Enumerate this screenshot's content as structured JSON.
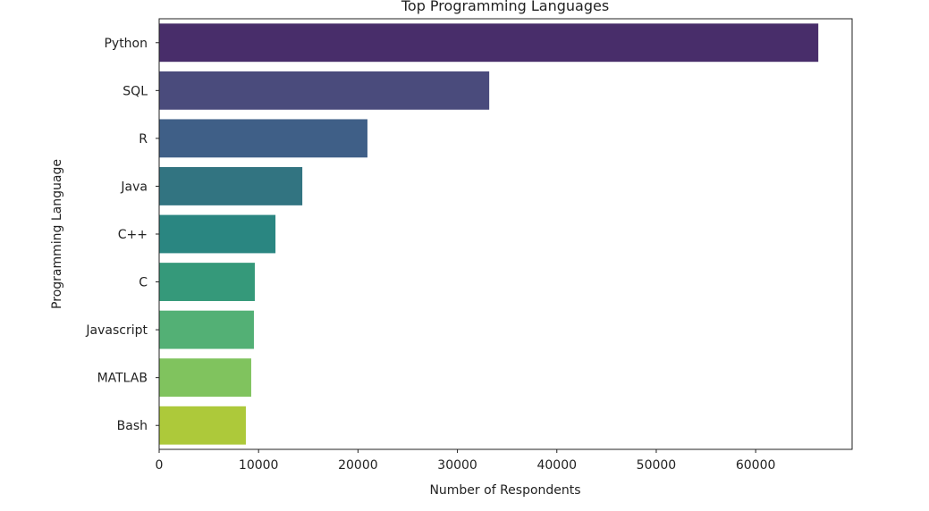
{
  "chart_data": {
    "type": "bar",
    "orientation": "horizontal",
    "title": "Top Programming Languages",
    "xlabel": "Number of Respondents",
    "ylabel": "Programming Language",
    "categories": [
      "Python",
      "SQL",
      "R",
      "Java",
      "C++",
      "C",
      "Javascript",
      "MATLAB",
      "Bash"
    ],
    "values": [
      66300,
      33200,
      20950,
      14400,
      11700,
      9620,
      9530,
      9260,
      8720
    ],
    "colors": [
      "#482d6a",
      "#4a4b7c",
      "#3f5f87",
      "#327481",
      "#2a8681",
      "#35997a",
      "#53b075",
      "#80c35e",
      "#adc93a"
    ],
    "xlim": [
      0,
      69700
    ],
    "xticks": [
      0,
      10000,
      20000,
      30000,
      40000,
      50000,
      60000
    ],
    "xtick_labels": [
      "0",
      "10000",
      "20000",
      "30000",
      "40000",
      "50000",
      "60000"
    ],
    "grid": false,
    "legend": "none"
  }
}
